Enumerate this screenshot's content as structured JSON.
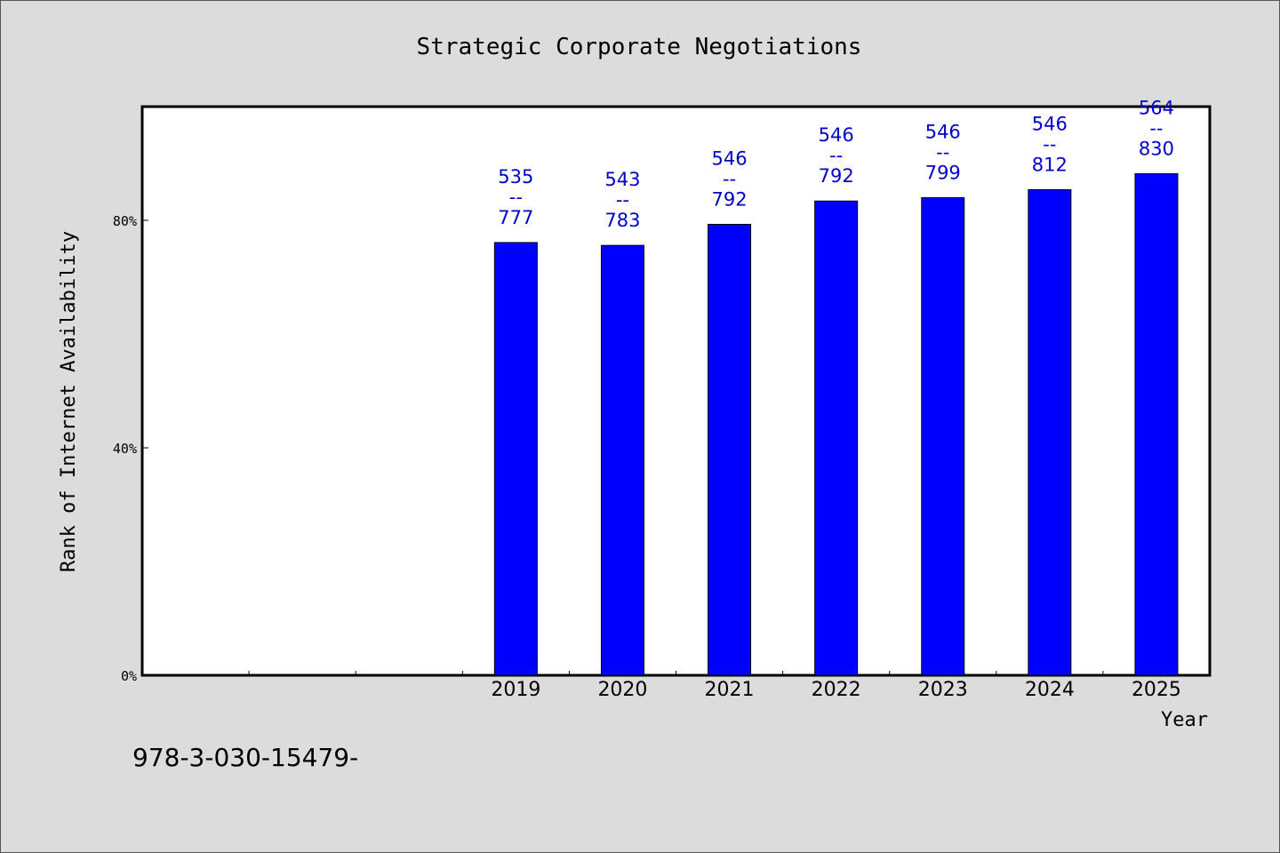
{
  "chart_data": {
    "type": "bar",
    "title": "Strategic Corporate Negotiations",
    "xlabel": "Year",
    "ylabel": "Rank of Internet Availability",
    "categories": [
      "",
      "",
      "",
      "2019",
      "2020",
      "2021",
      "2022",
      "2023",
      "2024",
      "2025"
    ],
    "values": [
      null,
      null,
      null,
      76.1,
      75.6,
      79.3,
      83.4,
      84.0,
      85.4,
      88.2
    ],
    "bar_labels": [
      null,
      null,
      null,
      [
        "535",
        "--",
        "777"
      ],
      [
        "543",
        "--",
        "783"
      ],
      [
        "546",
        "--",
        "792"
      ],
      [
        "546",
        "--",
        "792"
      ],
      [
        "546",
        "--",
        "799"
      ],
      [
        "546",
        "--",
        "812"
      ],
      [
        "564",
        "--",
        "830"
      ]
    ],
    "yticks": [
      {
        "value": 0,
        "label": "0%"
      },
      {
        "value": 40,
        "label": "40%"
      },
      {
        "value": 80,
        "label": "80%"
      }
    ],
    "ylim": [
      0,
      100
    ],
    "grid": false,
    "colors": {
      "bar": "#0000ff",
      "label": "#0000cc",
      "background": "#dcdcdc",
      "plot": "#ffffff"
    }
  },
  "footer_text": "978-3-030-15479-"
}
